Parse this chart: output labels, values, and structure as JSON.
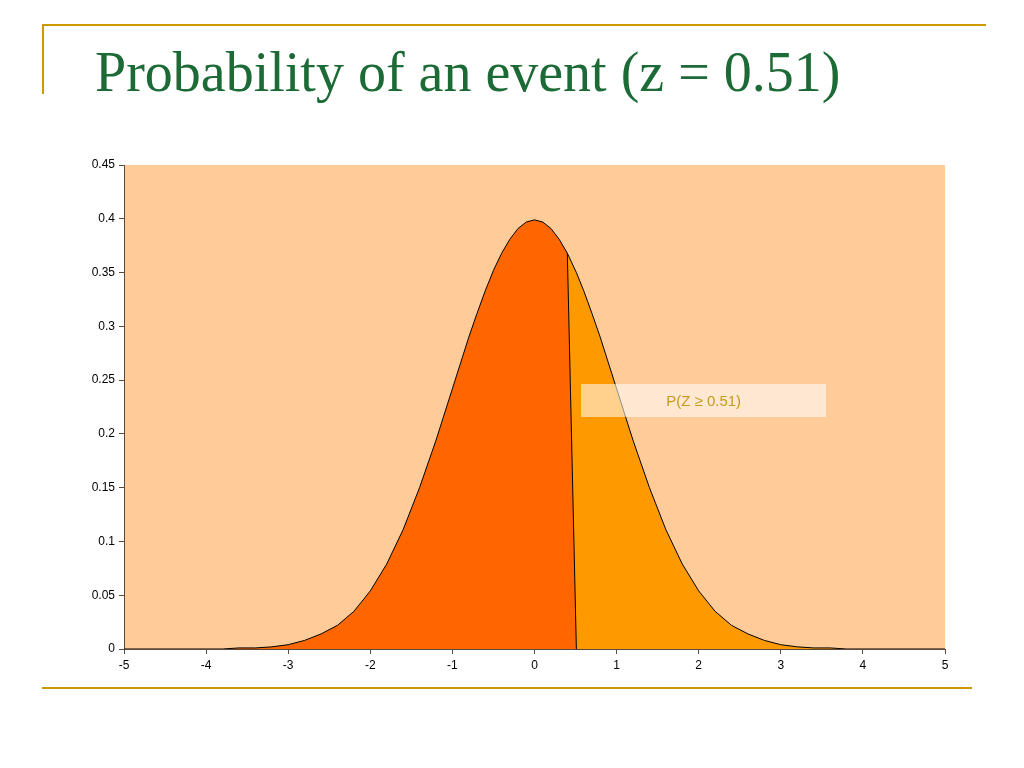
{
  "chart_data": {
    "type": "area",
    "title": "Probability of an event (z = 0.51)",
    "annotations": [
      "P(Z ≥ 0.51)"
    ],
    "series": [
      {
        "color": "#ff6600",
        "x": [
          -5,
          -4.5,
          -4,
          -3.8,
          -3.6,
          -3.4,
          -3.2,
          -3,
          -2.8,
          -2.6,
          -2.4,
          -2.2,
          -2,
          -1.8,
          -1.6,
          -1.4,
          -1.2,
          -1,
          -0.9,
          -0.8,
          -0.7,
          -0.6,
          -0.5,
          -0.4,
          -0.3,
          -0.2,
          -0.1,
          0,
          0.1,
          0.2,
          0.3,
          0.4,
          0.51
        ],
        "values": [
          0,
          0,
          0,
          0,
          0.001,
          0.001,
          0.002,
          0.004,
          0.008,
          0.014,
          0.022,
          0.035,
          0.054,
          0.079,
          0.111,
          0.15,
          0.194,
          0.242,
          0.266,
          0.29,
          0.312,
          0.333,
          0.352,
          0.368,
          0.381,
          0.391,
          0.397,
          0.399,
          0.397,
          0.391,
          0.381,
          0.368,
          0
        ]
      },
      {
        "color": "#ff9900",
        "x": [
          0.4,
          0.51,
          0.6,
          0.7,
          0.8,
          0.9,
          1,
          1.2,
          1.4,
          1.6,
          1.8,
          2,
          2.2,
          2.4,
          2.6,
          2.8,
          3,
          3.2,
          3.4,
          3.6,
          3.8,
          4,
          4.5,
          5
        ],
        "values": [
          0.368,
          0.35,
          0.333,
          0.312,
          0.29,
          0.266,
          0.242,
          0.194,
          0.15,
          0.111,
          0.079,
          0.054,
          0.035,
          0.022,
          0.014,
          0.008,
          0.004,
          0.002,
          0.001,
          0.001,
          0,
          0,
          0,
          0
        ]
      }
    ],
    "xlim": [
      -5,
      5
    ],
    "xticks": [
      -5,
      -4,
      -3,
      -2,
      -1,
      0,
      1,
      2,
      3,
      4,
      5
    ],
    "ylim": [
      0,
      0.45
    ],
    "yticks": [
      0,
      0.05,
      0.1,
      0.15,
      0.2,
      0.25,
      0.3,
      0.35,
      0.4,
      0.45
    ]
  }
}
